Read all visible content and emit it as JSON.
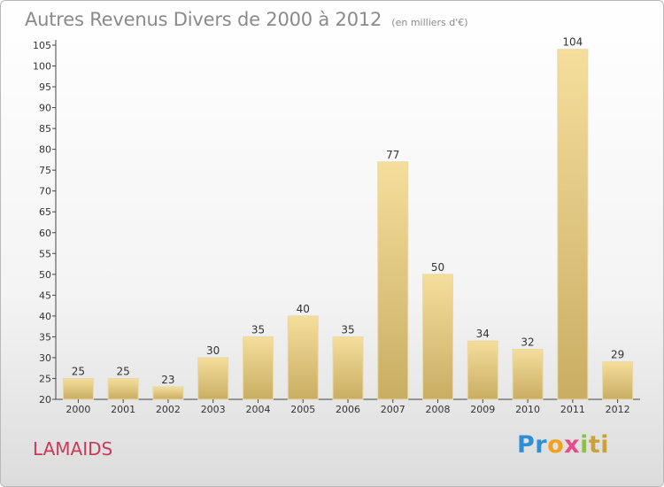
{
  "header": {
    "title": "Autres Revenus Divers de 2000 à 2012",
    "subtitle": "(en milliers d'€)"
  },
  "footer": {
    "commune": "LAMAIDS",
    "logo_parts": [
      "Pr",
      "o",
      "x",
      "i",
      "ti"
    ]
  },
  "colors": {
    "bar_light": "#f5de9c",
    "bar_dark": "#c9ad62",
    "bar_edge": "#e8d9a8",
    "commune": "#c8395a",
    "title": "#8a8a8a"
  },
  "chart_data": {
    "type": "bar",
    "categories": [
      "2000",
      "2001",
      "2002",
      "2003",
      "2004",
      "2005",
      "2006",
      "2007",
      "2008",
      "2009",
      "2010",
      "2011",
      "2012"
    ],
    "values": [
      25,
      25,
      23,
      30,
      35,
      40,
      35,
      77,
      50,
      34,
      32,
      104,
      29
    ],
    "ylim": [
      20,
      105
    ],
    "yticks": [
      20,
      25,
      30,
      35,
      40,
      45,
      50,
      55,
      60,
      65,
      70,
      75,
      80,
      85,
      90,
      95,
      100,
      105
    ],
    "grid": false,
    "data_labels": true
  }
}
